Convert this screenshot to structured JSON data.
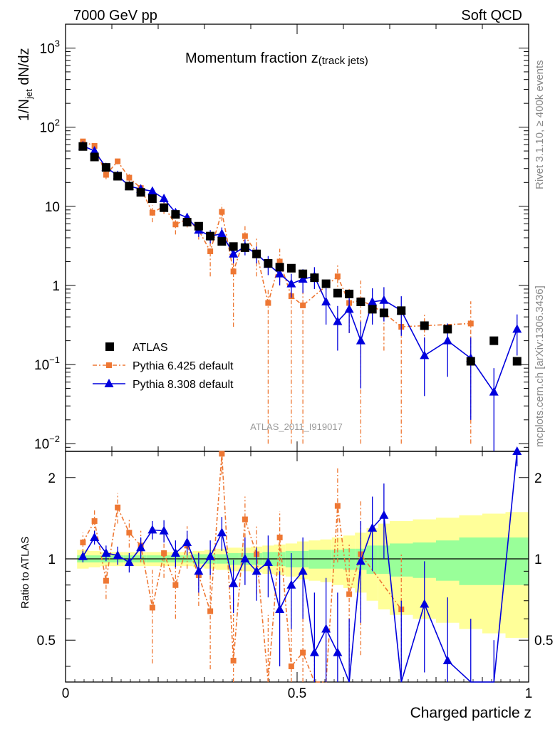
{
  "header": {
    "left": "7000 GeV pp",
    "right": "Soft QCD"
  },
  "side_labels": {
    "rivet": "Rivet 3.1.10, ≥ 400k events",
    "mcplots": "mcplots.cern.ch [arXiv:1306.3436]"
  },
  "colors": {
    "atlas": "#000000",
    "py6": "#ee7733",
    "py8": "#0000dd",
    "band_inner": "#99ff99",
    "band_outer": "#ffff99"
  },
  "chart_data": {
    "type": "scatter",
    "title": "Momentum fraction z(track jets)",
    "title_main": "Momentum fraction z",
    "title_sub": "(track jets)",
    "watermark": "ATLAS_2011_I919017",
    "xlabel": "Charged particle z",
    "ylabel": "1/N_jet dN/dz",
    "ylabel_main": "1/N",
    "ylabel_sub": "jet",
    "ylabel_tail": " dN/dz",
    "ratio_ylabel": "Ratio to ATLAS",
    "xlim": [
      0,
      1
    ],
    "ylim": [
      0.008,
      2000
    ],
    "yscale": "log",
    "ratio_ylim": [
      0.35,
      2.5
    ],
    "ratio_yscale": "log",
    "legend_position": "bottom-left",
    "x_ticks": [
      {
        "v": 0,
        "label": "0"
      },
      {
        "v": 0.5,
        "label": "0.5"
      },
      {
        "v": 1,
        "label": "1"
      }
    ],
    "y_ticks": [
      {
        "v": 0.01,
        "label": "10",
        "exp": "−2"
      },
      {
        "v": 0.1,
        "label": "10",
        "exp": "−1"
      },
      {
        "v": 1,
        "label": "1",
        "exp": ""
      },
      {
        "v": 10,
        "label": "10",
        "exp": ""
      },
      {
        "v": 100,
        "label": "10",
        "exp": "2"
      },
      {
        "v": 1000,
        "label": "10",
        "exp": "3"
      }
    ],
    "ratio_ticks": [
      {
        "v": 0.5,
        "label": "0.5"
      },
      {
        "v": 1,
        "label": "1"
      },
      {
        "v": 2,
        "label": "2"
      }
    ],
    "x": [
      0.0375,
      0.0625,
      0.0875,
      0.1125,
      0.1375,
      0.1625,
      0.1875,
      0.2125,
      0.2375,
      0.2625,
      0.2875,
      0.3125,
      0.3375,
      0.3625,
      0.3875,
      0.4125,
      0.4375,
      0.4625,
      0.4875,
      0.5125,
      0.5375,
      0.5625,
      0.5875,
      0.6125,
      0.6375,
      0.6625,
      0.6875,
      0.725,
      0.775,
      0.825,
      0.875,
      0.925,
      0.975
    ],
    "series": [
      {
        "name": "ATLAS",
        "marker": "square",
        "values": [
          57,
          42,
          31,
          24,
          18,
          15,
          12.5,
          9.6,
          7.9,
          6.3,
          5.6,
          4.2,
          3.6,
          3.1,
          3.0,
          2.5,
          1.9,
          1.7,
          1.65,
          1.4,
          1.25,
          1.05,
          0.8,
          0.78,
          0.62,
          0.5,
          0.45,
          0.48,
          0.31,
          0.28,
          0.11,
          0.2,
          0.11
        ]
      },
      {
        "name": "Pythia 6.425 default",
        "marker": "square-small",
        "values": [
          66,
          58,
          25,
          37,
          23,
          17,
          8.3,
          10,
          5.9,
          6.9,
          5.0,
          2.7,
          8.5,
          1.5,
          4.2,
          2.6,
          0.6,
          2.0,
          0.73,
          0.56,
          null,
          null,
          1.3,
          0.6,
          0.65,
          0.55,
          0.45,
          0.3,
          0.31,
          null,
          0.33,
          null,
          null
        ],
        "err_lo": [
          3,
          3,
          3,
          3,
          2.5,
          2,
          2,
          2,
          1.5,
          1.5,
          1.2,
          1.4,
          2,
          1.2,
          1.4,
          1.3,
          0.59,
          0.9,
          0.72,
          0.55,
          null,
          null,
          0.5,
          0.35,
          0.64,
          0.2,
          0.3,
          0.29,
          0.12,
          null,
          0.32,
          null,
          null
        ],
        "err_hi": [
          3,
          3,
          3,
          3,
          2.5,
          2,
          2,
          2,
          1.5,
          1.5,
          1.2,
          1.4,
          2,
          1.2,
          1.4,
          1.3,
          0.3,
          0.9,
          0.4,
          0.3,
          null,
          null,
          0.5,
          0.35,
          0.5,
          0.2,
          0.3,
          0.15,
          0.12,
          null,
          0.3,
          null,
          null
        ]
      },
      {
        "name": "Pythia 8.308 default",
        "marker": "triangle",
        "values": [
          58,
          50,
          31,
          24.5,
          18,
          16.5,
          15.5,
          12.5,
          8.3,
          7.2,
          5.0,
          4.2,
          4.5,
          2.5,
          3.1,
          2.5,
          1.85,
          1.4,
          1.05,
          1.2,
          1.3,
          0.62,
          0.35,
          0.5,
          0.2,
          0.62,
          0.65,
          0.48,
          0.13,
          0.2,
          0.12,
          0.045,
          0.28
        ],
        "err_lo": [
          3,
          3,
          2,
          2,
          1.5,
          1.5,
          1.5,
          1.5,
          1,
          1,
          0.9,
          0.8,
          0.9,
          0.6,
          0.7,
          0.6,
          0.5,
          0.4,
          0.35,
          0.4,
          0.4,
          0.3,
          0.2,
          0.25,
          0.15,
          0.3,
          0.3,
          0.25,
          0.09,
          0.13,
          0.1,
          0.044,
          0.15
        ],
        "err_hi": [
          3,
          3,
          2,
          2,
          1.5,
          1.5,
          1.5,
          1.5,
          1,
          1,
          0.9,
          0.8,
          0.9,
          0.6,
          0.7,
          0.6,
          0.5,
          0.4,
          0.35,
          0.4,
          0.4,
          0.3,
          0.2,
          0.25,
          0.15,
          0.3,
          0.3,
          0.25,
          0.09,
          0.13,
          0.1,
          0.045,
          0.15
        ]
      }
    ],
    "ratio": {
      "py6": [
        1.15,
        1.38,
        0.83,
        1.55,
        1.25,
        1.12,
        0.66,
        1.05,
        0.8,
        1.12,
        0.87,
        0.64,
        2.45,
        0.42,
        1.4,
        1.04,
        0.32,
        1.2,
        0.4,
        0.45,
        0.2,
        0.2,
        1.57,
        0.74,
        1.04,
        null,
        null,
        0.65,
        null,
        null,
        null,
        null,
        null
      ],
      "py6_err": [
        0.1,
        0.15,
        0.12,
        0.2,
        0.15,
        0.15,
        0.25,
        0.2,
        0.2,
        0.2,
        0.2,
        0.25,
        0.4,
        0.3,
        0.3,
        0.3,
        0.3,
        0.3,
        0.3,
        0.3,
        0.3,
        0.3,
        0.6,
        0.4,
        0.6,
        null,
        null,
        0.4,
        null,
        null,
        null,
        null,
        null
      ],
      "py8": [
        1.02,
        1.2,
        1.05,
        1.03,
        0.97,
        1.1,
        1.28,
        1.27,
        1.05,
        1.15,
        0.9,
        1.02,
        1.25,
        0.81,
        1.0,
        0.9,
        0.97,
        0.65,
        0.8,
        0.9,
        0.45,
        0.55,
        0.45,
        0.3,
        0.98,
        1.3,
        1.45,
        0.3,
        0.68,
        0.42,
        0.3,
        0.2,
        2.5
      ],
      "py8_err": [
        0.05,
        0.07,
        0.07,
        0.08,
        0.08,
        0.1,
        0.1,
        0.12,
        0.12,
        0.12,
        0.15,
        0.15,
        0.18,
        0.18,
        0.2,
        0.2,
        0.25,
        0.25,
        0.25,
        0.3,
        0.3,
        0.3,
        0.3,
        0.3,
        0.4,
        0.4,
        0.45,
        0.4,
        0.3,
        0.3,
        0.3,
        0.3,
        0.3
      ],
      "band_edges": [
        0.025,
        0.05,
        0.075,
        0.1,
        0.125,
        0.15,
        0.175,
        0.2,
        0.225,
        0.25,
        0.275,
        0.3,
        0.325,
        0.35,
        0.375,
        0.4,
        0.425,
        0.45,
        0.475,
        0.5,
        0.525,
        0.55,
        0.575,
        0.6,
        0.625,
        0.65,
        0.675,
        0.7,
        0.75,
        0.8,
        0.85,
        0.9,
        0.95,
        1.0
      ],
      "band_inner": [
        0.03,
        0.03,
        0.03,
        0.03,
        0.03,
        0.03,
        0.03,
        0.03,
        0.03,
        0.03,
        0.04,
        0.04,
        0.04,
        0.05,
        0.05,
        0.05,
        0.06,
        0.06,
        0.07,
        0.07,
        0.08,
        0.08,
        0.08,
        0.09,
        0.09,
        0.12,
        0.12,
        0.14,
        0.15,
        0.17,
        0.2,
        0.2,
        0.2
      ],
      "band_outer": [
        0.08,
        0.07,
        0.06,
        0.06,
        0.06,
        0.06,
        0.06,
        0.06,
        0.06,
        0.06,
        0.07,
        0.08,
        0.09,
        0.1,
        0.1,
        0.11,
        0.12,
        0.13,
        0.14,
        0.16,
        0.17,
        0.18,
        0.2,
        0.22,
        0.25,
        0.3,
        0.35,
        0.38,
        0.4,
        0.42,
        0.45,
        0.47,
        0.49
      ]
    }
  }
}
